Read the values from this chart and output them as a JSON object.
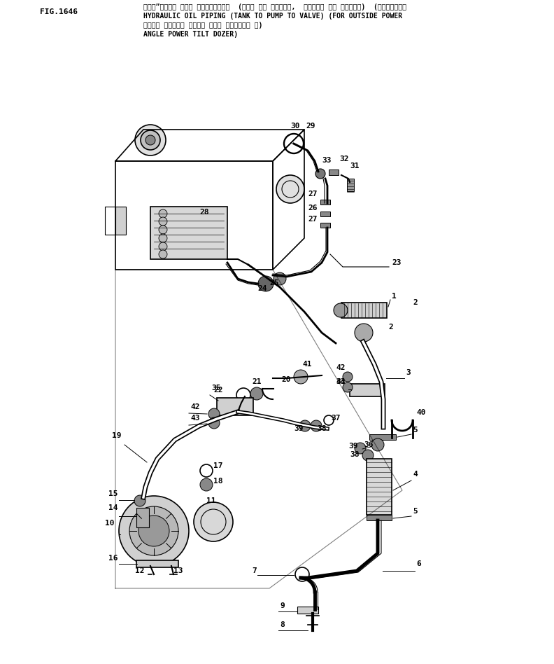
{
  "fig_label": "FIG.1646",
  "title_line1": "ハイト”ロリック オイル バイビング  (タンク カラ ブンブ,  ブンブ カラ バルブ)  (アウトサイド",
  "title_line2": "HYDRAULIC OIL PIPING (TANK TO PUMP TO VALVE) (FOR OUTSIDE POWER",
  "title_line3": "バワー アングル バワー チルト ドーザー 用)",
  "title_line4": "ANGLE POWER TILT DOZER)",
  "bg_color": "#ffffff",
  "lc": "#000000",
  "tc": "#000000"
}
